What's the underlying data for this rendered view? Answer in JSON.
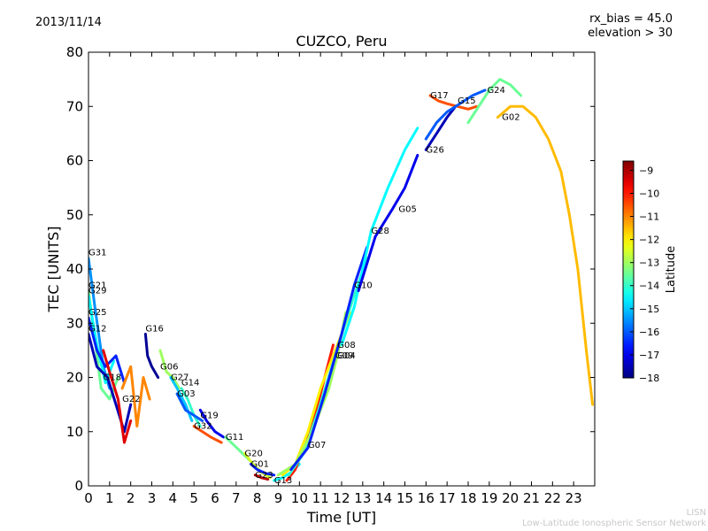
{
  "header": {
    "date": "2013/11/14",
    "title": "CUZCO, Peru",
    "rx_bias": "rx_bias = 45.0",
    "elevation": "elevation > 30"
  },
  "footer": {
    "line1": "LISN",
    "line2": "Low-Latitude Ionospheric Sensor Network"
  },
  "chart_data": {
    "type": "scatter",
    "title": "CUZCO, Peru",
    "xlabel": "Time [UT]",
    "ylabel": "TEC [UNITS]",
    "xlim": [
      0,
      24
    ],
    "ylim": [
      0,
      80
    ],
    "xticks": [
      0,
      1,
      2,
      3,
      4,
      5,
      6,
      7,
      8,
      9,
      10,
      11,
      12,
      13,
      14,
      15,
      16,
      17,
      18,
      19,
      20,
      21,
      22,
      23
    ],
    "yticks": [
      0,
      10,
      20,
      30,
      40,
      50,
      60,
      70,
      80
    ],
    "grid": false,
    "colorbar": {
      "label": "Latitude",
      "min": -18,
      "max": -8.6,
      "ticks": [
        -18,
        -17,
        -16,
        -15,
        -14,
        -13,
        -12,
        -11,
        -10,
        -9
      ],
      "colormap": "jet"
    },
    "series": [
      {
        "name": "G31",
        "label_at": [
          0.0,
          42.5
        ],
        "lat": -15.5,
        "points": [
          [
            0.0,
            42
          ],
          [
            0.3,
            33
          ],
          [
            0.7,
            22
          ],
          [
            1.0,
            18
          ]
        ]
      },
      {
        "name": "G21",
        "label_at": [
          0.0,
          36.5
        ],
        "lat": -13.5,
        "points": [
          [
            0.0,
            36
          ],
          [
            0.3,
            27
          ],
          [
            0.6,
            18
          ],
          [
            1.0,
            16
          ],
          [
            1.4,
            20
          ]
        ]
      },
      {
        "name": "G29",
        "label_at": [
          0.0,
          35.5
        ],
        "lat": -14.5,
        "points": [
          [
            0.0,
            35
          ],
          [
            0.4,
            26
          ],
          [
            0.8,
            19
          ],
          [
            1.2,
            23
          ]
        ]
      },
      {
        "name": "G25",
        "label_at": [
          0.0,
          31.5
        ],
        "lat": -16.5,
        "points": [
          [
            0.0,
            31
          ],
          [
            0.4,
            25
          ],
          [
            0.8,
            22
          ],
          [
            1.3,
            24
          ],
          [
            1.7,
            19
          ]
        ]
      },
      {
        "name": "G12",
        "label_at": [
          0.0,
          28.5
        ],
        "lat": -17.5,
        "points": [
          [
            0.0,
            28
          ],
          [
            0.4,
            22
          ],
          [
            0.9,
            20
          ],
          [
            1.3,
            15
          ],
          [
            1.7,
            10
          ],
          [
            2.0,
            15
          ]
        ]
      },
      {
        "name": "G18",
        "label_at": [
          0.7,
          19.5
        ],
        "lat": -9.5,
        "points": [
          [
            0.7,
            25
          ],
          [
            1.0,
            21
          ],
          [
            1.4,
            16
          ],
          [
            1.7,
            8
          ],
          [
            2.0,
            12
          ]
        ]
      },
      {
        "name": "G22",
        "label_at": [
          1.6,
          15.5
        ],
        "lat": -11.0,
        "points": [
          [
            1.6,
            18
          ],
          [
            2.0,
            22
          ],
          [
            2.3,
            11
          ],
          [
            2.6,
            20
          ],
          [
            2.9,
            16
          ]
        ]
      },
      {
        "name": "G16",
        "label_at": [
          2.7,
          28.5
        ],
        "lat": -17.8,
        "points": [
          [
            2.7,
            28
          ],
          [
            2.8,
            24
          ],
          [
            3.0,
            22
          ],
          [
            3.3,
            20
          ]
        ]
      },
      {
        "name": "G06",
        "label_at": [
          3.4,
          21.5
        ],
        "lat": -13.0,
        "points": [
          [
            3.4,
            25
          ],
          [
            3.7,
            21
          ],
          [
            4.0,
            20
          ],
          [
            4.3,
            18
          ]
        ]
      },
      {
        "name": "G27",
        "label_at": [
          3.9,
          19.5
        ],
        "lat": -15.0,
        "points": [
          [
            3.9,
            20
          ],
          [
            4.2,
            18
          ],
          [
            4.6,
            15
          ],
          [
            4.9,
            12
          ]
        ]
      },
      {
        "name": "G14",
        "label_at": [
          4.4,
          18.5
        ],
        "lat": -14.0,
        "points": [
          [
            4.4,
            18
          ],
          [
            4.7,
            16
          ],
          [
            5.0,
            13
          ],
          [
            5.3,
            11
          ]
        ]
      },
      {
        "name": "G03",
        "label_at": [
          4.2,
          16.5
        ],
        "lat": -16.0,
        "points": [
          [
            4.2,
            17
          ],
          [
            4.6,
            14
          ],
          [
            5.0,
            13
          ],
          [
            5.4,
            12
          ]
        ]
      },
      {
        "name": "G19",
        "label_at": [
          5.3,
          12.5
        ],
        "lat": -17.0,
        "points": [
          [
            5.3,
            14
          ],
          [
            5.6,
            12
          ],
          [
            6.0,
            10
          ],
          [
            6.4,
            9
          ]
        ]
      },
      {
        "name": "G32",
        "label_at": [
          5.0,
          10.5
        ],
        "lat": -10.5,
        "points": [
          [
            5.0,
            11
          ],
          [
            5.4,
            10
          ],
          [
            5.8,
            9
          ],
          [
            6.3,
            8
          ]
        ]
      },
      {
        "name": "G11",
        "label_at": [
          6.5,
          8.5
        ],
        "lat": -13.5,
        "points": [
          [
            6.5,
            9
          ],
          [
            6.9,
            7.5
          ],
          [
            7.3,
            6
          ],
          [
            7.7,
            4.5
          ]
        ]
      },
      {
        "name": "G20",
        "label_at": [
          7.4,
          5.5
        ],
        "lat": -12.5,
        "points": [
          [
            7.4,
            6
          ],
          [
            7.8,
            4
          ],
          [
            8.2,
            2.5
          ],
          [
            8.6,
            1.5
          ]
        ]
      },
      {
        "name": "G01",
        "label_at": [
          7.7,
          3.5
        ],
        "lat": -16.5,
        "points": [
          [
            7.7,
            4
          ],
          [
            8.0,
            3
          ],
          [
            8.4,
            2.3
          ],
          [
            8.8,
            2
          ]
        ]
      },
      {
        "name": "G23",
        "label_at": [
          7.9,
          1.5
        ],
        "lat": -9.2,
        "points": [
          [
            7.9,
            2
          ],
          [
            8.2,
            1.5
          ],
          [
            8.5,
            1.2
          ]
        ]
      },
      {
        "name": "G13",
        "label_at": [
          8.8,
          0.5
        ],
        "lat": -14.5,
        "points": [
          [
            8.8,
            1
          ],
          [
            9.2,
            1.5
          ],
          [
            9.6,
            2.5
          ],
          [
            10.0,
            4
          ]
        ]
      },
      {
        "name": "G07",
        "label_at": [
          10.4,
          7.0
        ],
        "lat": -10.0,
        "points": [
          [
            9.4,
            1
          ],
          [
            9.8,
            3
          ],
          [
            10.3,
            8
          ],
          [
            10.8,
            14
          ],
          [
            11.2,
            20
          ],
          [
            11.6,
            26
          ]
        ]
      },
      {
        "name": "G08",
        "label_at": [
          11.8,
          25.5
        ],
        "lat": -12.0,
        "points": [
          [
            9.2,
            2
          ],
          [
            9.8,
            4
          ],
          [
            10.4,
            10
          ],
          [
            11.0,
            18
          ],
          [
            11.8,
            26
          ],
          [
            12.4,
            32
          ]
        ]
      },
      {
        "name": "G09",
        "label_at": [
          11.7,
          23.5
        ],
        "lat": -14.0,
        "points": [
          [
            9.5,
            2
          ],
          [
            10.2,
            6
          ],
          [
            10.9,
            14
          ],
          [
            11.7,
            24
          ],
          [
            12.5,
            34
          ],
          [
            13.2,
            42
          ]
        ]
      },
      {
        "name": "G04",
        "label_at": [
          11.8,
          23.5
        ],
        "lat": -13.0,
        "points": [
          [
            9.0,
            2
          ],
          [
            9.8,
            4
          ],
          [
            10.6,
            10
          ],
          [
            11.4,
            18
          ],
          [
            11.8,
            24
          ],
          [
            12.2,
            32
          ]
        ]
      },
      {
        "name": "G10",
        "label_at": [
          12.6,
          36.5
        ],
        "lat": -16.5,
        "points": [
          [
            9.6,
            3
          ],
          [
            10.4,
            7
          ],
          [
            11.2,
            17
          ],
          [
            12.0,
            28
          ],
          [
            12.6,
            37
          ],
          [
            13.2,
            44
          ]
        ]
      },
      {
        "name": "G28",
        "label_at": [
          13.4,
          46.5
        ],
        "lat": -14.5,
        "points": [
          [
            12.0,
            26
          ],
          [
            12.6,
            33
          ],
          [
            13.4,
            47
          ],
          [
            14.2,
            55
          ],
          [
            15.0,
            62
          ],
          [
            15.6,
            66
          ]
        ]
      },
      {
        "name": "G05",
        "label_at": [
          14.7,
          50.5
        ],
        "lat": -17.0,
        "points": [
          [
            12.8,
            36
          ],
          [
            13.6,
            46
          ],
          [
            14.4,
            51
          ],
          [
            15.0,
            55
          ],
          [
            15.6,
            61
          ]
        ]
      },
      {
        "name": "G26",
        "label_at": [
          16.0,
          61.5
        ],
        "lat": -17.5,
        "points": [
          [
            16.0,
            62
          ],
          [
            16.5,
            65
          ],
          [
            17.0,
            68
          ],
          [
            17.4,
            70
          ]
        ]
      },
      {
        "name": "G17",
        "label_at": [
          16.2,
          71.5
        ],
        "lat": -10.5,
        "points": [
          [
            16.2,
            72
          ],
          [
            16.6,
            71
          ],
          [
            17.0,
            70.5
          ],
          [
            17.5,
            70
          ],
          [
            18.0,
            69.5
          ],
          [
            18.4,
            70
          ]
        ]
      },
      {
        "name": "G15",
        "label_at": [
          17.5,
          70.5
        ],
        "lat": -16.0,
        "points": [
          [
            16.0,
            64
          ],
          [
            16.5,
            67
          ],
          [
            17.0,
            69
          ],
          [
            17.6,
            70.5
          ],
          [
            18.2,
            72
          ],
          [
            18.8,
            73
          ]
        ]
      },
      {
        "name": "G24",
        "label_at": [
          18.9,
          72.5
        ],
        "lat": -13.5,
        "points": [
          [
            18.0,
            67
          ],
          [
            18.5,
            70
          ],
          [
            19.0,
            73
          ],
          [
            19.5,
            75
          ],
          [
            20.0,
            74
          ],
          [
            20.5,
            72
          ]
        ]
      },
      {
        "name": "G02",
        "label_at": [
          19.6,
          67.5
        ],
        "lat": -11.5,
        "points": [
          [
            19.4,
            68
          ],
          [
            20.0,
            70
          ],
          [
            20.6,
            70
          ],
          [
            21.2,
            68
          ],
          [
            21.8,
            64
          ],
          [
            22.4,
            58
          ],
          [
            22.8,
            50
          ],
          [
            23.2,
            40
          ],
          [
            23.6,
            25
          ],
          [
            23.9,
            15
          ]
        ]
      }
    ]
  }
}
